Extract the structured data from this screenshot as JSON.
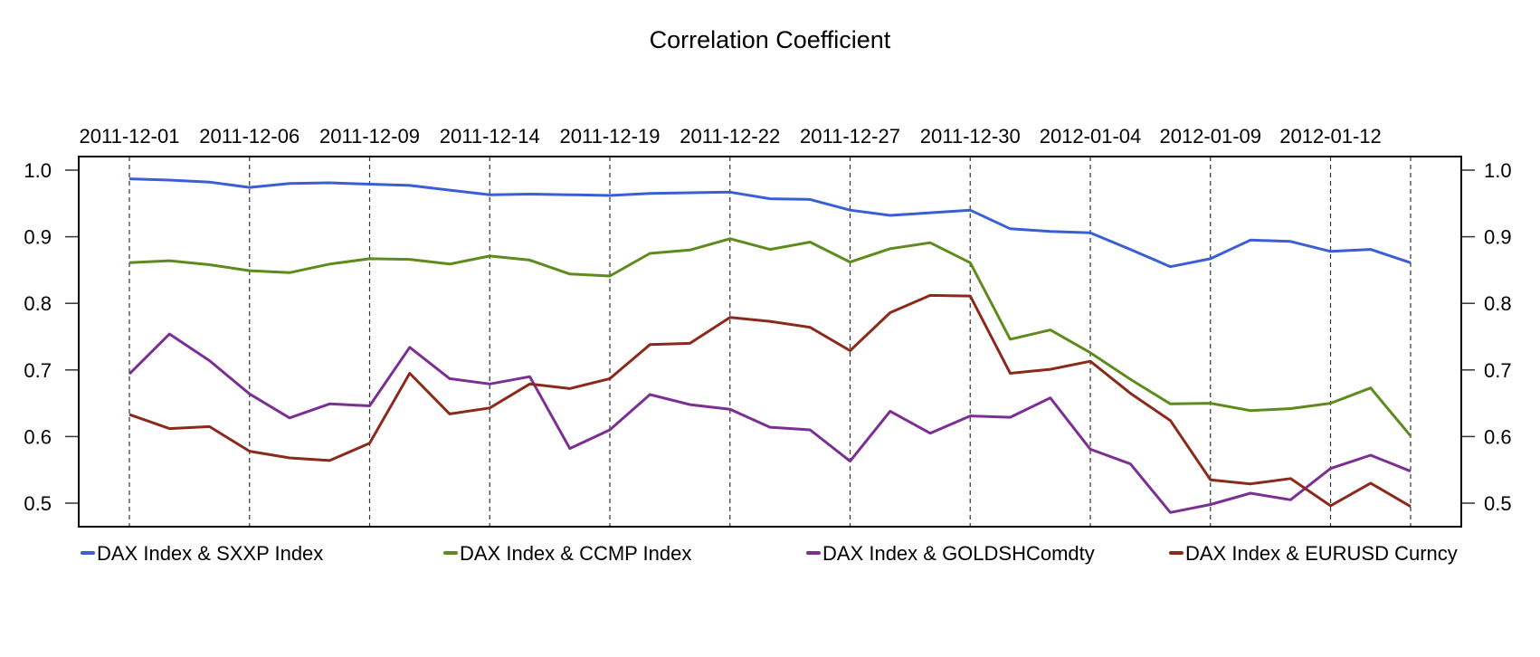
{
  "chart_data": {
    "type": "line",
    "title": "Correlation Coefficient",
    "xlabel": "",
    "ylabel": "",
    "ylim": [
      0.47,
      1.022
    ],
    "yticks": [
      "1.0",
      "0.9",
      "0.8",
      "0.7",
      "0.6",
      "0.5"
    ],
    "ytick_values": [
      1.0,
      0.9,
      0.8,
      0.7,
      0.6,
      0.5
    ],
    "y_axis_both_sides": true,
    "xtick_labels": [
      "2011-12-01",
      "2011-12-06",
      "2011-12-09",
      "2011-12-14",
      "2011-12-19",
      "2011-12-22",
      "2011-12-27",
      "2011-12-30",
      "2012-01-04",
      "2012-01-09",
      "2012-01-12"
    ],
    "xtick_indices": [
      0,
      3,
      6,
      9,
      12,
      15,
      18,
      21,
      24,
      27,
      30
    ],
    "vertical_dashed_grid_indices": [
      0,
      3,
      6,
      9,
      12,
      15,
      18,
      21,
      24,
      27,
      30,
      32
    ],
    "x_axis_position": "top",
    "n_points": 33,
    "legend_position": "bottom",
    "series": [
      {
        "name": "DAX Index & SXXP Index",
        "color": "#3a5fd4",
        "values": [
          0.987,
          0.985,
          0.982,
          0.974,
          0.98,
          0.981,
          0.979,
          0.977,
          0.97,
          0.963,
          0.964,
          0.963,
          0.962,
          0.965,
          0.966,
          0.967,
          0.957,
          0.956,
          0.94,
          0.932,
          0.936,
          0.94,
          0.912,
          0.908,
          0.906,
          0.881,
          0.855,
          0.867,
          0.895,
          0.893,
          0.878,
          0.881,
          0.861
        ]
      },
      {
        "name": "DAX Index & CCMP Index",
        "color": "#5e8a1e",
        "values": [
          0.861,
          0.864,
          0.858,
          0.849,
          0.846,
          0.859,
          0.867,
          0.866,
          0.859,
          0.871,
          0.865,
          0.844,
          0.841,
          0.875,
          0.88,
          0.897,
          0.881,
          0.892,
          0.862,
          0.882,
          0.891,
          0.861,
          0.746,
          0.76,
          0.726,
          0.686,
          0.649,
          0.65,
          0.639,
          0.642,
          0.65,
          0.673,
          0.601
        ]
      },
      {
        "name": "DAX Index & GOLDSHComdty",
        "color": "#7b2f93",
        "values": [
          0.694,
          0.754,
          0.714,
          0.664,
          0.628,
          0.649,
          0.646,
          0.734,
          0.687,
          0.679,
          0.69,
          0.582,
          0.61,
          0.663,
          0.648,
          0.641,
          0.614,
          0.61,
          0.563,
          0.638,
          0.605,
          0.631,
          0.629,
          0.658,
          0.581,
          0.559,
          0.486,
          0.498,
          0.515,
          0.505,
          0.552,
          0.572,
          0.548
        ]
      },
      {
        "name": "DAX Index & EURUSD Curncy",
        "color": "#8b2a1a",
        "values": [
          0.633,
          0.612,
          0.615,
          0.578,
          0.568,
          0.564,
          0.59,
          0.695,
          0.634,
          0.643,
          0.679,
          0.672,
          0.687,
          0.738,
          0.74,
          0.779,
          0.773,
          0.764,
          0.729,
          0.786,
          0.812,
          0.811,
          0.695,
          0.701,
          0.713,
          0.665,
          0.624,
          0.535,
          0.529,
          0.537,
          0.496,
          0.53,
          0.495
        ]
      }
    ]
  }
}
